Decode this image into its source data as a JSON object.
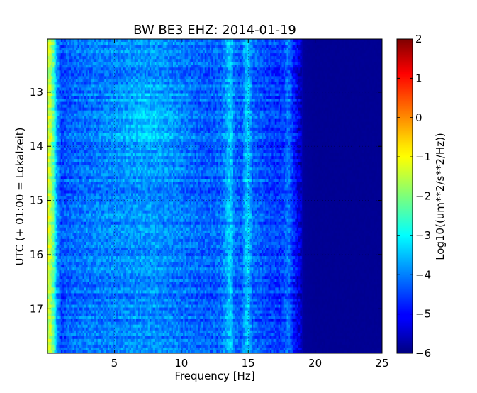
{
  "chart_data": {
    "type": "heatmap",
    "title": "BW BE3 EHZ: 2014-01-19",
    "xlabel": "Frequency [Hz]",
    "ylabel": "UTC (+ 01:00 = Lokalzeit)",
    "xlim": [
      0,
      25
    ],
    "ylim": [
      12.02,
      17.82
    ],
    "y_inverted": true,
    "x_ticks": [
      5,
      10,
      15,
      20,
      25
    ],
    "x_tick_labels": [
      "5",
      "10",
      "15",
      "20",
      "25"
    ],
    "y_ticks": [
      13,
      14,
      15,
      16,
      17
    ],
    "y_tick_labels": [
      "13",
      "14",
      "15",
      "16",
      "17"
    ],
    "grid": true,
    "colormap": "jet",
    "colorbar": {
      "label": "Log10((um**2/s**2/Hz))",
      "range": [
        -6,
        2
      ],
      "ticks": [
        2,
        1,
        0,
        -1,
        -2,
        -3,
        -4,
        -5,
        -6
      ],
      "tick_labels": [
        "2",
        "1",
        "0",
        "−1",
        "−2",
        "−3",
        "−4",
        "−5",
        "−6"
      ]
    },
    "spectral_profile": {
      "frequency_hz": [
        0.0,
        0.15,
        0.3,
        0.45,
        0.6,
        0.8,
        1.0,
        1.5,
        2,
        3,
        5,
        7,
        8,
        10,
        12,
        13,
        13.4,
        13.7,
        14,
        14.5,
        14.8,
        15.0,
        15.3,
        15.7,
        16.5,
        17.5,
        18.0,
        18.5,
        18.9,
        19.2,
        20,
        25
      ],
      "log10_psd": [
        -1.6,
        -1.3,
        -1.7,
        -2.3,
        -3.3,
        -4.0,
        -4.5,
        -4.3,
        -4.2,
        -4.1,
        -4.0,
        -3.9,
        -3.9,
        -4.1,
        -4.3,
        -4.2,
        -3.7,
        -3.4,
        -4.2,
        -4.3,
        -3.6,
        -3.3,
        -4.2,
        -4.3,
        -4.5,
        -4.6,
        -4.1,
        -4.9,
        -5.4,
        -5.8,
        -5.85,
        -5.85
      ]
    }
  }
}
